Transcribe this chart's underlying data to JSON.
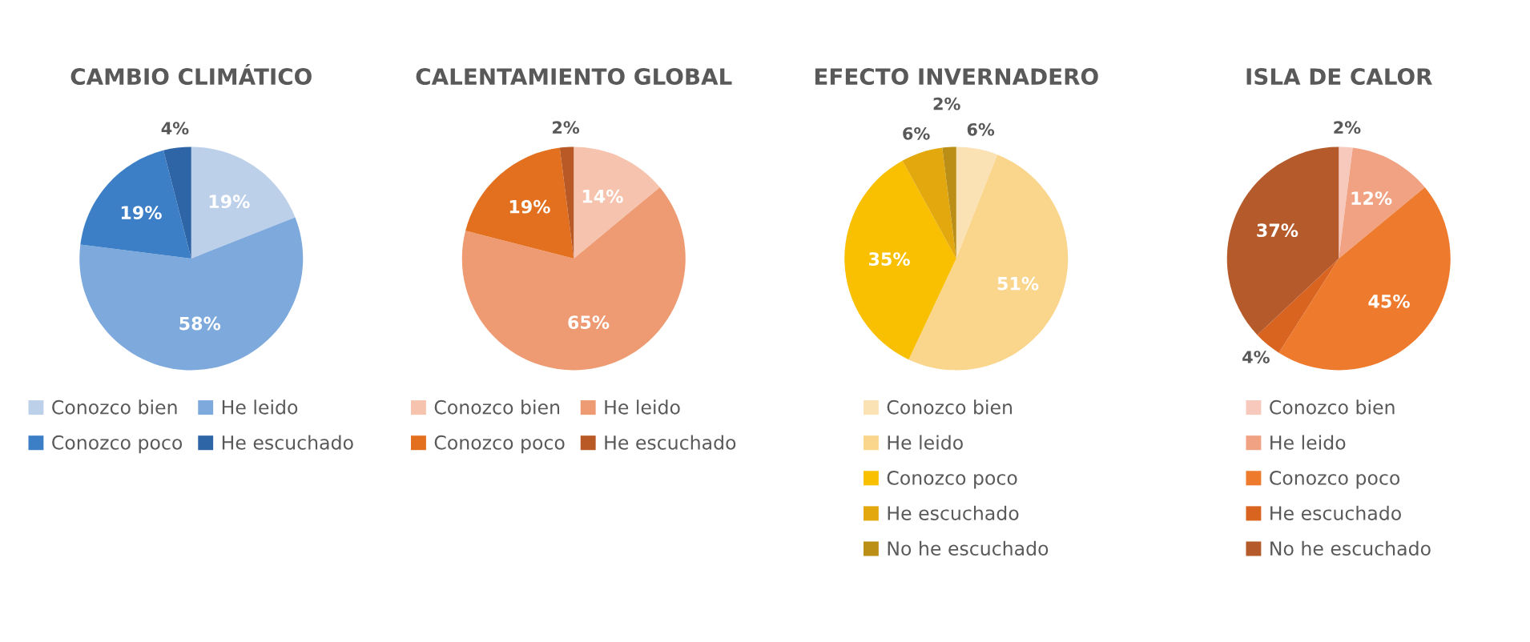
{
  "chart_data": [
    {
      "type": "pie",
      "title": "CAMBIO CLIMÁTICO",
      "categories": [
        "Conozco bien",
        "He leido",
        "Conozco poco",
        "He escuchado"
      ],
      "values": [
        19,
        58,
        19,
        4
      ],
      "value_labels": [
        "19%",
        "58%",
        "19%",
        "4%"
      ],
      "colors": [
        "#bdd0ea",
        "#7ea9dc",
        "#3d7fc6",
        "#2e65a6"
      ],
      "legend": "bottom"
    },
    {
      "type": "pie",
      "title": "CALENTAMIENTO GLOBAL",
      "categories": [
        "Conozco bien",
        "He leido",
        "Conozco poco",
        "He escuchado"
      ],
      "values": [
        14,
        65,
        19,
        2
      ],
      "value_labels": [
        "14%",
        "65%",
        "19%",
        "2%"
      ],
      "colors": [
        "#f6c4ae",
        "#ee9b73",
        "#e2701f",
        "#b95a26"
      ],
      "legend": "bottom"
    },
    {
      "type": "pie",
      "title": "EFECTO INVERNADERO",
      "categories": [
        "Conozco bien",
        "He leido",
        "Conozco poco",
        "He escuchado",
        "No he escuchado"
      ],
      "values": [
        6,
        51,
        35,
        6,
        2
      ],
      "value_labels": [
        "6%",
        "51%",
        "35%",
        "6%",
        "2%"
      ],
      "colors": [
        "#fbe2b5",
        "#fad58c",
        "#f8c000",
        "#e2a80e",
        "#bb8e16"
      ],
      "legend": "bottom"
    },
    {
      "type": "pie",
      "title": "ISLA DE CALOR",
      "categories": [
        "Conozco bien",
        "He leido",
        "Conozco poco",
        "He escuchado",
        "No he escuchado"
      ],
      "values": [
        2,
        12,
        45,
        4,
        37
      ],
      "value_labels": [
        "2%",
        "12%",
        "45%",
        "4%",
        "37%"
      ],
      "colors": [
        "#f7c8bc",
        "#f0a283",
        "#ee7a2d",
        "#d96420",
        "#b55a2a"
      ],
      "legend": "bottom"
    }
  ]
}
